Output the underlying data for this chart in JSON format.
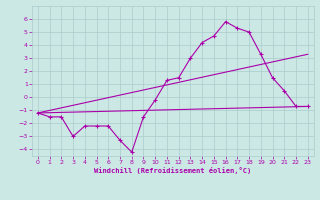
{
  "title": "",
  "xlabel": "Windchill (Refroidissement éolien,°C)",
  "bg_color": "#cce8e4",
  "grid_color": "#aacccc",
  "line_color": "#aa00aa",
  "xlim": [
    -0.5,
    23.5
  ],
  "ylim": [
    -4.5,
    7.0
  ],
  "xticks": [
    0,
    1,
    2,
    3,
    4,
    5,
    6,
    7,
    8,
    9,
    10,
    11,
    12,
    13,
    14,
    15,
    16,
    17,
    18,
    19,
    20,
    21,
    22,
    23
  ],
  "yticks": [
    -4,
    -3,
    -2,
    -1,
    0,
    1,
    2,
    3,
    4,
    5,
    6
  ],
  "line1_x": [
    0,
    1,
    2,
    3,
    4,
    5,
    6,
    7,
    8,
    9,
    10,
    11,
    12,
    13,
    14,
    15,
    16,
    17,
    18,
    19,
    20,
    21,
    22,
    23
  ],
  "line1_y": [
    -1.2,
    -1.5,
    -1.5,
    -3.0,
    -2.2,
    -2.2,
    -2.2,
    -3.3,
    -4.2,
    -1.5,
    -0.2,
    1.3,
    1.5,
    3.0,
    4.2,
    4.7,
    5.8,
    5.3,
    5.0,
    3.3,
    1.5,
    0.5,
    -0.7,
    -0.7
  ],
  "line2_x": [
    0,
    23
  ],
  "line2_y": [
    -1.2,
    -0.7
  ],
  "line3_x": [
    0,
    23
  ],
  "line3_y": [
    -1.2,
    3.3
  ],
  "tick_fontsize": 4.5,
  "xlabel_fontsize": 5.0
}
